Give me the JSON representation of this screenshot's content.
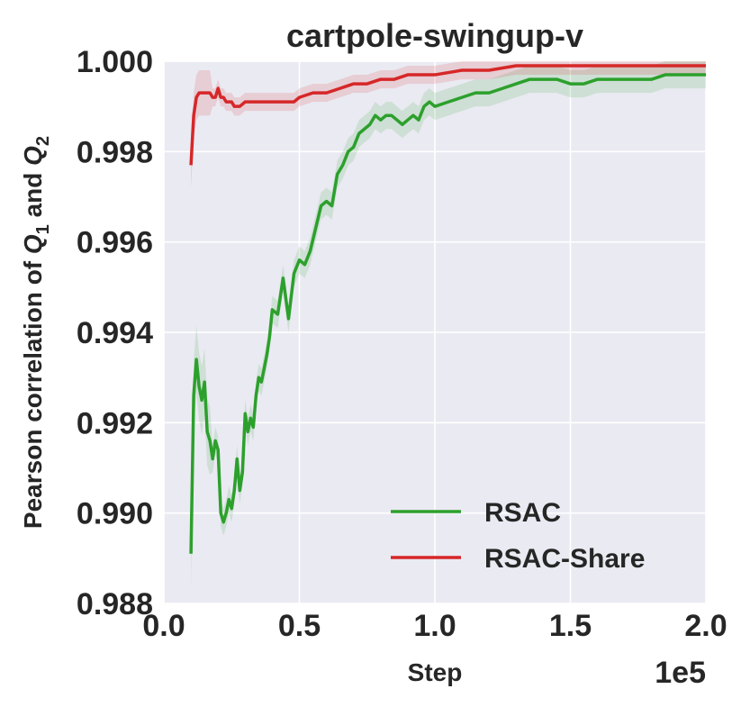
{
  "chart_data": {
    "type": "line",
    "title": "cartpole-swingup-v",
    "xlabel": "Step",
    "ylabel": "Pearson correlation of Q1 and Q2",
    "ylabel_parts": {
      "prefix": "Pearson correlation of ",
      "q": "Q",
      "sub1": "1",
      "mid": " and ",
      "sub2": "2"
    },
    "x_offset_label": "1e5",
    "xlim": [
      0.0,
      2.0
    ],
    "ylim": [
      0.988,
      1.0
    ],
    "xticks": [
      "0.0",
      "0.5",
      "1.0",
      "1.5",
      "2.0"
    ],
    "yticks": [
      "0.988",
      "0.990",
      "0.992",
      "0.994",
      "0.996",
      "0.998",
      "1.000"
    ],
    "grid": true,
    "legend_position": "lower right",
    "series": [
      {
        "name": "RSAC",
        "color": "#2ca02c",
        "x": [
          0.1,
          0.11,
          0.12,
          0.13,
          0.14,
          0.15,
          0.16,
          0.17,
          0.18,
          0.19,
          0.2,
          0.21,
          0.22,
          0.23,
          0.24,
          0.25,
          0.26,
          0.27,
          0.28,
          0.29,
          0.3,
          0.31,
          0.32,
          0.33,
          0.34,
          0.35,
          0.36,
          0.37,
          0.38,
          0.39,
          0.4,
          0.42,
          0.44,
          0.46,
          0.48,
          0.5,
          0.52,
          0.54,
          0.56,
          0.58,
          0.6,
          0.62,
          0.64,
          0.66,
          0.68,
          0.7,
          0.72,
          0.74,
          0.76,
          0.78,
          0.8,
          0.82,
          0.84,
          0.86,
          0.88,
          0.9,
          0.92,
          0.94,
          0.96,
          0.98,
          1.0,
          1.05,
          1.1,
          1.15,
          1.2,
          1.25,
          1.3,
          1.35,
          1.4,
          1.45,
          1.5,
          1.55,
          1.6,
          1.65,
          1.7,
          1.75,
          1.8,
          1.85,
          1.9,
          1.95,
          2.0
        ],
        "y": [
          0.9891,
          0.9926,
          0.9934,
          0.9928,
          0.9925,
          0.9929,
          0.9918,
          0.9916,
          0.9912,
          0.9916,
          0.9914,
          0.99,
          0.9898,
          0.99,
          0.9903,
          0.9901,
          0.9905,
          0.9912,
          0.9905,
          0.9909,
          0.9922,
          0.9918,
          0.9921,
          0.9919,
          0.9926,
          0.993,
          0.9929,
          0.9932,
          0.9935,
          0.9939,
          0.9945,
          0.9944,
          0.9952,
          0.9943,
          0.9953,
          0.9956,
          0.9955,
          0.9958,
          0.9963,
          0.9968,
          0.9969,
          0.9968,
          0.9975,
          0.9977,
          0.998,
          0.9981,
          0.9984,
          0.9985,
          0.9986,
          0.9988,
          0.9987,
          0.9988,
          0.9988,
          0.9987,
          0.9986,
          0.9987,
          0.9988,
          0.9987,
          0.999,
          0.9991,
          0.999,
          0.9991,
          0.9992,
          0.9993,
          0.9993,
          0.9994,
          0.9995,
          0.9996,
          0.9996,
          0.9996,
          0.9995,
          0.9995,
          0.9996,
          0.9996,
          0.9996,
          0.9996,
          0.9996,
          0.9997,
          0.9997,
          0.9997,
          0.9997
        ],
        "band": 0.0003
      },
      {
        "name": "RSAC-Share",
        "color": "#d62728",
        "x": [
          0.1,
          0.11,
          0.12,
          0.13,
          0.14,
          0.15,
          0.16,
          0.17,
          0.18,
          0.19,
          0.2,
          0.21,
          0.22,
          0.23,
          0.24,
          0.25,
          0.26,
          0.27,
          0.28,
          0.3,
          0.32,
          0.34,
          0.36,
          0.38,
          0.4,
          0.42,
          0.44,
          0.46,
          0.48,
          0.5,
          0.55,
          0.6,
          0.65,
          0.7,
          0.75,
          0.8,
          0.85,
          0.9,
          0.95,
          1.0,
          1.1,
          1.2,
          1.3,
          1.4,
          1.5,
          1.6,
          1.7,
          1.8,
          1.9,
          2.0
        ],
        "y": [
          0.9977,
          0.9988,
          0.9992,
          0.9993,
          0.9993,
          0.9993,
          0.9993,
          0.9993,
          0.9992,
          0.9992,
          0.9994,
          0.9992,
          0.9992,
          0.9991,
          0.9991,
          0.9991,
          0.999,
          0.999,
          0.999,
          0.9991,
          0.9991,
          0.9991,
          0.9991,
          0.9991,
          0.9991,
          0.9991,
          0.9991,
          0.9991,
          0.9991,
          0.9992,
          0.9993,
          0.9993,
          0.9994,
          0.9995,
          0.9995,
          0.9996,
          0.9996,
          0.9997,
          0.9997,
          0.9997,
          0.9998,
          0.9998,
          0.9999,
          0.9999,
          0.9999,
          0.9999,
          0.9999,
          0.9999,
          0.9999,
          0.9999
        ],
        "band": 0.0002
      }
    ]
  }
}
